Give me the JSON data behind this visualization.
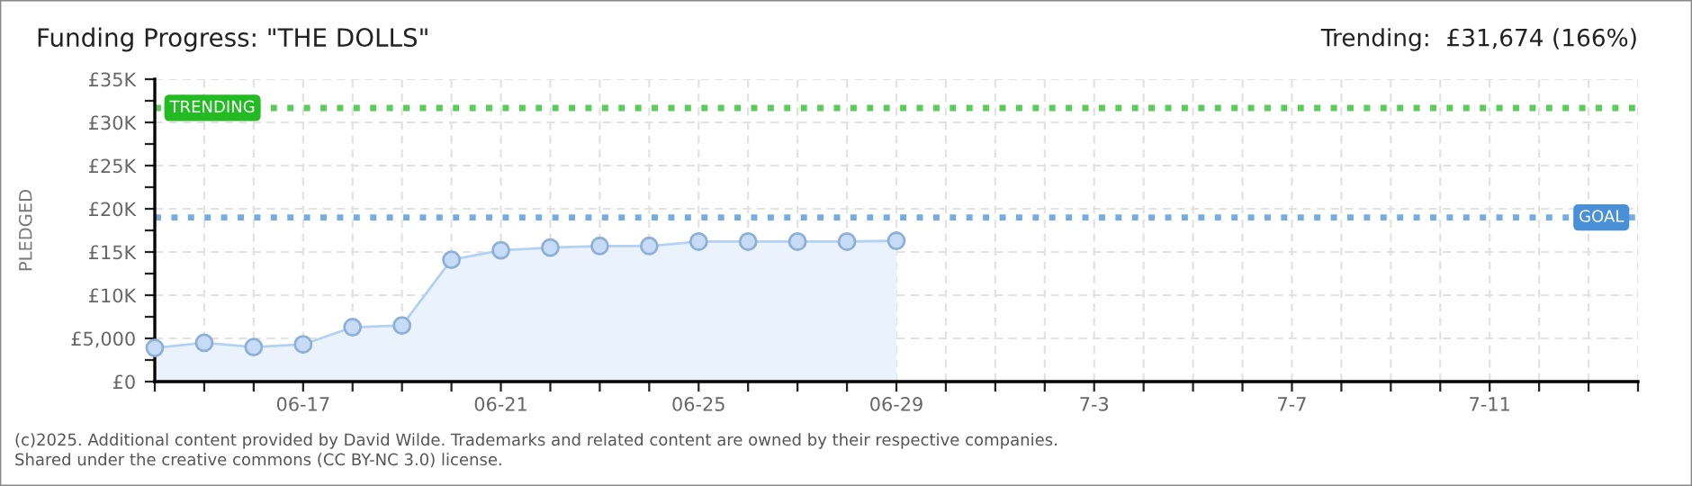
{
  "chart_data": {
    "type": "area",
    "title": "Funding Progress: \"THE DOLLS\"",
    "subtitle": "Trending:  £31,674 (166%)",
    "ylabel": "PLEDGED",
    "annotations": [
      "(c)2025. Additional content provided by David Wilde. Trademarks and related content are owned by their respective companies.",
      "Shared under the creative commons (CC BY-NC 3.0) license."
    ],
    "categories": [
      null,
      null,
      null,
      "06-17",
      null,
      null,
      null,
      "06-21",
      null,
      null,
      null,
      "06-25",
      null,
      null,
      null,
      "06-29",
      null,
      null,
      null,
      "7-3",
      null,
      null,
      null,
      "7-7",
      null,
      null,
      null,
      "7-11",
      null,
      null,
      null
    ],
    "series": [
      {
        "color": "#b3d1f2",
        "values": [
          3900,
          4500,
          4000,
          4300,
          6300,
          6500,
          14100,
          15200,
          15500,
          15700,
          15700,
          16200,
          16200,
          16200,
          16200,
          16300,
          null,
          null,
          null,
          null,
          null,
          null,
          null,
          null,
          null,
          null,
          null,
          null,
          null,
          null,
          null
        ]
      }
    ],
    "ylim": [
      0,
      35000
    ],
    "yticks": [
      {
        "value": 0,
        "label": "£0"
      },
      {
        "value": 2500,
        "label": null
      },
      {
        "value": 5000,
        "label": "£5,000"
      },
      {
        "value": 7500,
        "label": null
      },
      {
        "value": 10000,
        "label": "£10K"
      },
      {
        "value": 12500,
        "label": null
      },
      {
        "value": 15000,
        "label": "£15K"
      },
      {
        "value": 17500,
        "label": null
      },
      {
        "value": 20000,
        "label": "£20K"
      },
      {
        "value": 22500,
        "label": null
      },
      {
        "value": 25000,
        "label": "£25K"
      },
      {
        "value": 27500,
        "label": null
      },
      {
        "value": 30000,
        "label": "£30K"
      },
      {
        "value": 32500,
        "label": null
      },
      {
        "value": 35000,
        "label": "£35K"
      }
    ],
    "ref_lines": [
      {
        "axis": "y",
        "value": 19000,
        "label": "GOAL",
        "color": "#4a90d9",
        "line_style": "dotted"
      },
      {
        "axis": "y",
        "value": 31674,
        "label": "TRENDING",
        "color": "#22bb22",
        "line_style": "dotted"
      }
    ],
    "grid": true,
    "marker": "circle",
    "line_style": "solid",
    "legend": false
  }
}
